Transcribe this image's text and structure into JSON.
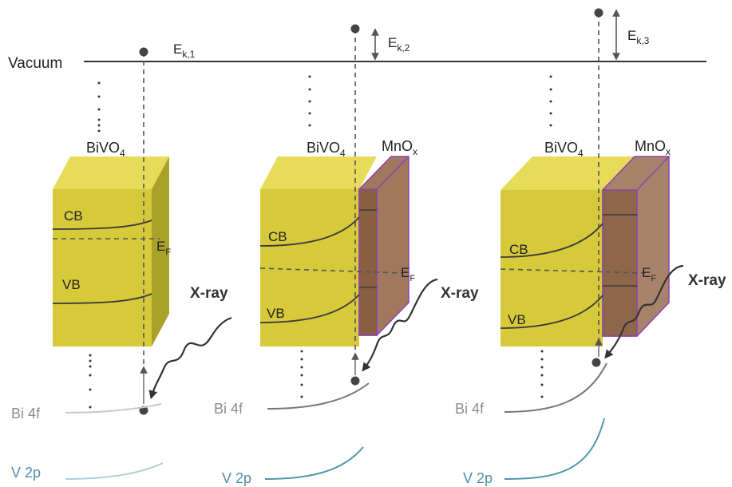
{
  "vacuum_label": "Vacuum",
  "xray_label": "X-ray",
  "panels": [
    {
      "material_label": "BiVO",
      "material_sub": "4",
      "coating_label": "",
      "coating_sub": "",
      "ek_label": "E",
      "ek_sub": "k,1",
      "cb_label": "CB",
      "vb_label": "VB",
      "ef_label": "E",
      "ef_sub": "F",
      "core1_label": "Bi 4f",
      "core2_label": "V 2p"
    },
    {
      "material_label": "BiVO",
      "material_sub": "4",
      "coating_label": "MnO",
      "coating_sub": "x",
      "ek_label": "E",
      "ek_sub": "k,2",
      "cb_label": "CB",
      "vb_label": "VB",
      "ef_label": "E",
      "ef_sub": "F",
      "core1_label": "Bi 4f",
      "core2_label": "V 2p"
    },
    {
      "material_label": "BiVO",
      "material_sub": "4",
      "coating_label": "MnO",
      "coating_sub": "x",
      "ek_label": "E",
      "ek_sub": "k,3",
      "cb_label": "CB",
      "vb_label": "VB",
      "ef_label": "E",
      "ef_sub": "F",
      "core1_label": "Bi 4f",
      "core2_label": "V 2p"
    }
  ],
  "colors": {
    "cube_front": "#d6c93a",
    "cube_top": "#e6dc5a",
    "cube_side": "#a9a12a",
    "coating": "#8a5a3a",
    "coating_edge": "#8e44ad",
    "line_dark": "#3a3a3a",
    "v2p_line": "#4f97ad",
    "v2p_text": "#4f8fa8",
    "bi4f_text": "#8c8c8c"
  }
}
